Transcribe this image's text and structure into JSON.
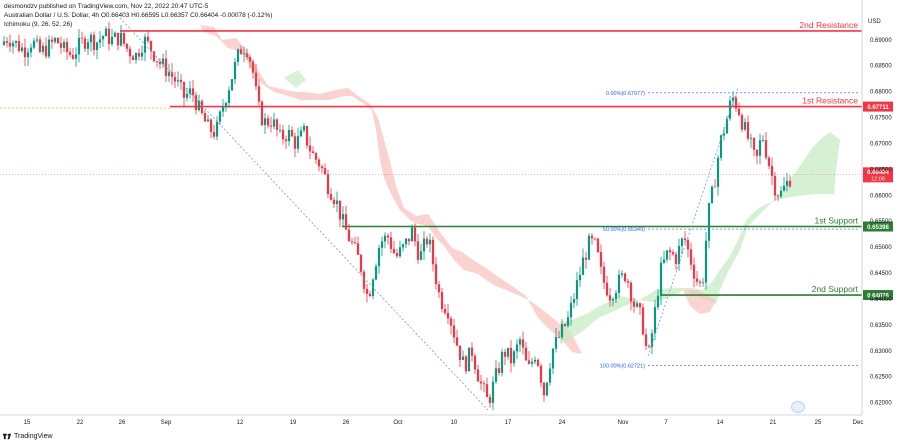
{
  "header": {
    "line1": "desmondzv published on TradingView.com, Nov 22, 2022 20:47 UTC-5",
    "line2": "Australian Dollar / U.S. Dollar, 4h  O0.66403 H0.66595 L0.66357 C0.66404 -0.00078 (-0.12%)",
    "line3": "Ichimoku (9, 26, 52, 26)"
  },
  "footer": {
    "brand": "TradingView"
  },
  "chart_data": {
    "type": "candlestick",
    "currency": "USD",
    "y_ticks": [
      "0.69000",
      "0.68500",
      "0.68000",
      "0.67500",
      "0.67000",
      "0.66500",
      "0.66000",
      "0.65500",
      "0.65000",
      "0.64500",
      "0.64000",
      "0.63500",
      "0.63000",
      "0.62500",
      "0.62000"
    ],
    "y_tick_values": [
      0.69,
      0.685,
      0.68,
      0.675,
      0.67,
      0.665,
      0.66,
      0.655,
      0.65,
      0.645,
      0.64,
      0.635,
      0.63,
      0.625,
      0.62
    ],
    "ylim": [
      0.6182,
      0.6942
    ],
    "x_ticks": [
      "15",
      "22",
      "26",
      "Sep",
      "12",
      "19",
      "26",
      "Oct",
      "10",
      "17",
      "24",
      "Nov",
      "7",
      "14",
      "21",
      "25",
      "Dec"
    ],
    "levels": [
      {
        "name": "2nd Resistance",
        "value": 0.6917,
        "price_label": "",
        "color": "#f23645"
      },
      {
        "name": "1st Resistance",
        "value": 0.67711,
        "price_label": "0.67711",
        "color": "#f23645"
      },
      {
        "name": "1st Support",
        "value": 0.65398,
        "price_label": "0.65398",
        "color": "#2e7d32"
      },
      {
        "name": "2nd Support",
        "value": 0.64076,
        "price_label": "0.64076",
        "color": "#2e7d32"
      }
    ],
    "current_price": {
      "value": 0.66404,
      "label": "0.66404",
      "timer": "12:09",
      "color": "#f23645"
    },
    "fibonacci": [
      {
        "label": "0.00%(0.67977)",
        "value": 0.67977
      },
      {
        "label": "50.00%(0.65349)",
        "value": 0.65349
      },
      {
        "label": "100.00%(0.62721)",
        "value": 0.62721
      }
    ],
    "price_path": [
      [
        0,
        0.689
      ],
      [
        8,
        0.6905
      ],
      [
        16,
        0.6892
      ],
      [
        24,
        0.688
      ],
      [
        32,
        0.6898
      ],
      [
        40,
        0.6875
      ],
      [
        48,
        0.6885
      ],
      [
        56,
        0.69
      ],
      [
        64,
        0.688
      ],
      [
        72,
        0.687
      ],
      [
        80,
        0.689
      ],
      [
        88,
        0.6905
      ],
      [
        96,
        0.6895
      ],
      [
        104,
        0.691
      ],
      [
        112,
        0.69
      ],
      [
        120,
        0.6905
      ],
      [
        128,
        0.688
      ],
      [
        136,
        0.687
      ],
      [
        144,
        0.69
      ],
      [
        152,
        0.688
      ],
      [
        160,
        0.6855
      ],
      [
        168,
        0.684
      ],
      [
        176,
        0.682
      ],
      [
        184,
        0.679
      ],
      [
        192,
        0.68
      ],
      [
        200,
        0.676
      ],
      [
        208,
        0.673
      ],
      [
        216,
        0.672
      ],
      [
        224,
        0.678
      ],
      [
        232,
        0.683
      ],
      [
        240,
        0.688
      ],
      [
        246,
        0.689
      ],
      [
        252,
        0.685
      ],
      [
        258,
        0.677
      ],
      [
        264,
        0.674
      ],
      [
        272,
        0.6745
      ],
      [
        280,
        0.671
      ],
      [
        288,
        0.672
      ],
      [
        296,
        0.67
      ],
      [
        304,
        0.672
      ],
      [
        312,
        0.668
      ],
      [
        320,
        0.666
      ],
      [
        328,
        0.662
      ],
      [
        336,
        0.659
      ],
      [
        344,
        0.654
      ],
      [
        352,
        0.6505
      ],
      [
        360,
        0.647
      ],
      [
        368,
        0.64
      ],
      [
        374,
        0.646
      ],
      [
        380,
        0.651
      ],
      [
        388,
        0.652
      ],
      [
        396,
        0.648
      ],
      [
        404,
        0.65
      ],
      [
        412,
        0.653
      ],
      [
        420,
        0.648
      ],
      [
        428,
        0.652
      ],
      [
        434,
        0.646
      ],
      [
        440,
        0.64
      ],
      [
        448,
        0.638
      ],
      [
        456,
        0.632
      ],
      [
        464,
        0.627
      ],
      [
        472,
        0.63
      ],
      [
        480,
        0.624
      ],
      [
        488,
        0.62
      ],
      [
        496,
        0.625
      ],
      [
        504,
        0.63
      ],
      [
        512,
        0.628
      ],
      [
        520,
        0.632
      ],
      [
        528,
        0.626
      ],
      [
        536,
        0.63
      ],
      [
        544,
        0.622
      ],
      [
        552,
        0.63
      ],
      [
        560,
        0.633
      ],
      [
        568,
        0.636
      ],
      [
        576,
        0.642
      ],
      [
        584,
        0.648
      ],
      [
        590,
        0.651
      ],
      [
        596,
        0.65
      ],
      [
        602,
        0.644
      ],
      [
        610,
        0.641
      ],
      [
        618,
        0.643
      ],
      [
        626,
        0.645
      ],
      [
        634,
        0.639
      ],
      [
        642,
        0.636
      ],
      [
        648,
        0.628
      ],
      [
        654,
        0.636
      ],
      [
        660,
        0.645
      ],
      [
        668,
        0.649
      ],
      [
        676,
        0.648
      ],
      [
        684,
        0.652
      ],
      [
        690,
        0.648
      ],
      [
        696,
        0.644
      ],
      [
        702,
        0.642
      ],
      [
        708,
        0.656
      ],
      [
        714,
        0.662
      ],
      [
        720,
        0.67
      ],
      [
        726,
        0.674
      ],
      [
        732,
        0.679
      ],
      [
        738,
        0.677
      ],
      [
        744,
        0.673
      ],
      [
        750,
        0.67
      ],
      [
        756,
        0.666
      ],
      [
        762,
        0.672
      ],
      [
        768,
        0.667
      ],
      [
        774,
        0.662
      ],
      [
        780,
        0.66
      ],
      [
        786,
        0.662
      ],
      [
        792,
        0.664
      ]
    ]
  }
}
